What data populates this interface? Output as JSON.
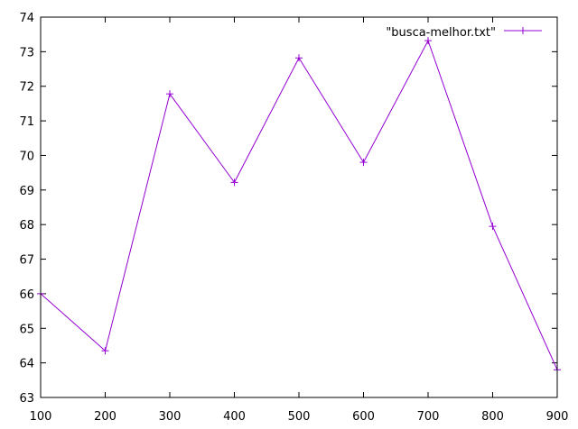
{
  "chart_data": {
    "type": "line",
    "title": "",
    "xlabel": "",
    "ylabel": "",
    "x": [
      100,
      200,
      300,
      400,
      500,
      600,
      700,
      800,
      900
    ],
    "series": [
      {
        "name": "\"busca-melhor.txt\"",
        "color": "#9400d3",
        "marker": "plus",
        "values": [
          66.0,
          64.35,
          71.78,
          69.22,
          72.82,
          69.8,
          73.32,
          67.95,
          63.8
        ]
      }
    ],
    "xlim": [
      100,
      900
    ],
    "ylim": [
      63,
      74
    ],
    "xticks": [
      "100",
      "200",
      "300",
      "400",
      "500",
      "600",
      "700",
      "800",
      "900"
    ],
    "yticks": [
      "63",
      "64",
      "65",
      "66",
      "67",
      "68",
      "69",
      "70",
      "71",
      "72",
      "73",
      "74"
    ],
    "grid": false,
    "legend": "top-right"
  }
}
